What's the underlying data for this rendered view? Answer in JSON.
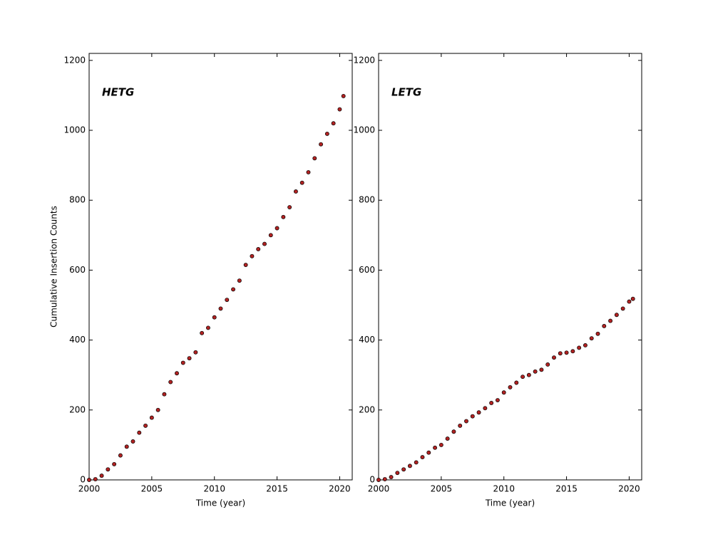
{
  "chart_data": [
    {
      "type": "scatter",
      "title": "HETG",
      "xlabel": "Time (year)",
      "ylabel": "Cumulative Insertion Counts",
      "color": "#b22222",
      "x": [
        2000.0,
        2000.5,
        2001.0,
        2001.5,
        2002.0,
        2002.5,
        2003.0,
        2003.5,
        2004.0,
        2004.5,
        2005.0,
        2005.5,
        2006.0,
        2006.5,
        2007.0,
        2007.5,
        2008.0,
        2008.5,
        2009.0,
        2009.5,
        2010.0,
        2010.5,
        2011.0,
        2011.5,
        2012.0,
        2012.5,
        2013.0,
        2013.5,
        2014.0,
        2014.5,
        2015.0,
        2015.5,
        2016.0,
        2016.5,
        2017.0,
        2017.5,
        2018.0,
        2018.5,
        2019.0,
        2019.5,
        2020.0,
        2020.3
      ],
      "values": [
        0,
        2,
        12,
        30,
        45,
        70,
        95,
        110,
        135,
        155,
        178,
        200,
        245,
        280,
        305,
        335,
        348,
        365,
        420,
        435,
        465,
        490,
        515,
        545,
        570,
        615,
        640,
        660,
        675,
        700,
        720,
        752,
        780,
        825,
        850,
        880,
        920,
        960,
        990,
        1020,
        1060,
        1098
      ],
      "xlim": [
        2000,
        2021
      ],
      "xticks": [
        2000,
        2005,
        2010,
        2015,
        2020
      ],
      "ylim": [
        0,
        1220
      ],
      "yticks": [
        0,
        200,
        400,
        600,
        800,
        1000,
        1200
      ]
    },
    {
      "type": "scatter",
      "title": "LETG",
      "xlabel": "Time (year)",
      "color": "#b22222",
      "x": [
        2000.0,
        2000.5,
        2001.0,
        2001.5,
        2002.0,
        2002.5,
        2003.0,
        2003.5,
        2004.0,
        2004.5,
        2005.0,
        2005.5,
        2006.0,
        2006.5,
        2007.0,
        2007.5,
        2008.0,
        2008.5,
        2009.0,
        2009.5,
        2010.0,
        2010.5,
        2011.0,
        2011.5,
        2012.0,
        2012.5,
        2013.0,
        2013.5,
        2014.0,
        2014.5,
        2015.0,
        2015.5,
        2016.0,
        2016.5,
        2017.0,
        2017.5,
        2018.0,
        2018.5,
        2019.0,
        2019.5,
        2020.0,
        2020.3
      ],
      "values": [
        0,
        2,
        8,
        20,
        30,
        40,
        50,
        65,
        78,
        92,
        100,
        118,
        138,
        155,
        168,
        182,
        193,
        205,
        220,
        228,
        250,
        265,
        278,
        295,
        300,
        310,
        315,
        330,
        350,
        362,
        364,
        368,
        378,
        385,
        405,
        418,
        440,
        455,
        472,
        490,
        510,
        518
      ],
      "xlim": [
        2000,
        2021
      ],
      "xticks": [
        2000,
        2005,
        2010,
        2015,
        2020
      ],
      "ylim": [
        0,
        1220
      ],
      "yticks": [
        0,
        200,
        400,
        600,
        800,
        1000,
        1200
      ]
    }
  ]
}
